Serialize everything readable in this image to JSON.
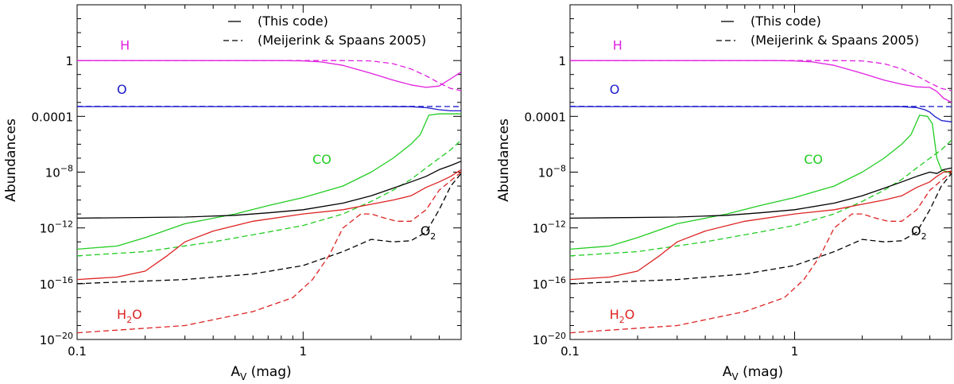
{
  "chart_data": [
    {
      "type": "line",
      "xscale": "log",
      "yscale": "log",
      "xlim": [
        0.1,
        5.0
      ],
      "ylim": [
        1e-20,
        10000
      ],
      "xlabel": "A",
      "xlabel_sub": "V",
      "xlabel_unit": " (mag)",
      "ylabel": "Abundances",
      "xticks": [
        {
          "v": 0.1,
          "label": "0.1"
        },
        {
          "v": 1,
          "label": "1"
        }
      ],
      "yticks": [
        {
          "v": 1e-20,
          "base": "10",
          "exp": "−20"
        },
        {
          "v": 1e-16,
          "base": "10",
          "exp": "−16"
        },
        {
          "v": 1e-12,
          "base": "10",
          "exp": "−12"
        },
        {
          "v": 1e-08,
          "base": "10",
          "exp": "−8"
        },
        {
          "v": 0.0001,
          "base": "0.0001",
          "exp": ""
        },
        {
          "v": 1,
          "base": "1",
          "exp": ""
        }
      ],
      "legend": [
        {
          "style": "solid",
          "label": "(This code)"
        },
        {
          "style": "dashed",
          "label": "(Meijerink & Spaans 2005)"
        }
      ],
      "annotations": [
        {
          "text": "H",
          "sub": "",
          "after": "",
          "color": "#e020e0",
          "x": 0.155,
          "y": 6
        },
        {
          "text": "O",
          "sub": "",
          "after": "",
          "color": "#1a1acc",
          "x": 0.15,
          "y": 0.004
        },
        {
          "text": "CO",
          "sub": "",
          "after": "",
          "color": "#22cc22",
          "x": 1.1,
          "y": 4e-08
        },
        {
          "text": "O",
          "sub": "2",
          "after": "",
          "color": "#000000",
          "x": 3.3,
          "y": 3e-13
        },
        {
          "text": "H",
          "sub": "2",
          "after": "O",
          "color": "#dd2222",
          "x": 0.15,
          "y": 3e-19
        }
      ],
      "series": [
        {
          "name": "H (This code)",
          "color": "#e020e0",
          "dash": false,
          "x": [
            0.1,
            0.3,
            0.6,
            0.8,
            1.0,
            1.2,
            1.5,
            2.0,
            2.5,
            3.0,
            3.5,
            4.0,
            4.5,
            5.0
          ],
          "y": [
            1,
            1,
            1,
            0.99,
            0.95,
            0.8,
            0.45,
            0.12,
            0.04,
            0.018,
            0.012,
            0.015,
            0.05,
            0.15
          ]
        },
        {
          "name": "H (Meijerink & Spaans 2005)",
          "color": "#e020e0",
          "dash": true,
          "x": [
            0.1,
            1.0,
            1.5,
            2.0,
            2.5,
            3.0,
            3.5,
            4.0,
            4.5,
            5.0
          ],
          "y": [
            1,
            1,
            0.99,
            0.95,
            0.6,
            0.25,
            0.08,
            0.025,
            0.01,
            0.007
          ]
        },
        {
          "name": "O (This code)",
          "color": "#1a1acc",
          "dash": false,
          "x": [
            0.1,
            1.0,
            2.0,
            3.0,
            3.5,
            4.0,
            4.5,
            5.0
          ],
          "y": [
            0.0005,
            0.0005,
            0.0005,
            0.00049,
            0.00042,
            0.0003,
            0.00025,
            0.00025
          ]
        },
        {
          "name": "O (Meijerink & Spaans 2005)",
          "color": "#1a1acc",
          "dash": true,
          "x": [
            0.1,
            1.0,
            3.0,
            5.0
          ],
          "y": [
            0.00052,
            0.00052,
            0.00052,
            0.0005
          ]
        },
        {
          "name": "CO (This code)",
          "color": "#22cc22",
          "dash": false,
          "x": [
            0.1,
            0.15,
            0.2,
            0.3,
            0.5,
            0.7,
            1.0,
            1.5,
            2.0,
            2.5,
            3.0,
            3.3,
            3.6,
            4.0,
            5.0
          ],
          "y": [
            3e-14,
            5e-14,
            2e-13,
            2e-12,
            1e-11,
            4e-11,
            1.5e-10,
            1e-09,
            1e-08,
            1e-07,
            1e-06,
            5e-06,
            0.00012,
            0.00015,
            0.00015
          ]
        },
        {
          "name": "CO (Meijerink & Spaans 2005)",
          "color": "#22cc22",
          "dash": true,
          "x": [
            0.1,
            0.2,
            0.4,
            0.7,
            1.0,
            1.5,
            2.0,
            2.5,
            3.0,
            3.5,
            4.0,
            4.5,
            5.0
          ],
          "y": [
            1e-14,
            2e-14,
            1e-13,
            5e-13,
            1.5e-12,
            1e-11,
            8e-11,
            5e-10,
            3e-09,
            2e-08,
            1e-07,
            4e-07,
            2e-06
          ]
        },
        {
          "name": "O2 (This code)",
          "color": "#000000",
          "dash": false,
          "x": [
            0.1,
            0.3,
            0.5,
            0.7,
            1.0,
            1.5,
            2.0,
            2.5,
            3.0,
            3.5,
            4.0,
            4.5,
            5.0
          ],
          "y": [
            5e-12,
            6e-12,
            8e-12,
            1.2e-11,
            2e-11,
            6e-11,
            2e-10,
            7e-10,
            2e-09,
            5e-09,
            1.5e-08,
            3e-08,
            6e-08
          ]
        },
        {
          "name": "O2 (Meijerink & Spaans 2005)",
          "color": "#000000",
          "dash": true,
          "x": [
            0.1,
            0.3,
            0.6,
            1.0,
            1.5,
            2.0,
            2.5,
            3.0,
            3.5,
            4.0,
            4.5,
            5.0
          ],
          "y": [
            1e-16,
            2e-16,
            5e-16,
            2e-15,
            2e-14,
            1.5e-13,
            1e-13,
            1.2e-13,
            5e-13,
            2e-11,
            1e-09,
            8e-09
          ]
        },
        {
          "name": "H2O (This code)",
          "color": "#dd2222",
          "dash": false,
          "x": [
            0.1,
            0.15,
            0.2,
            0.25,
            0.3,
            0.4,
            0.6,
            1.0,
            1.5,
            2.0,
            2.5,
            3.0,
            3.5,
            4.0,
            4.5,
            5.0
          ],
          "y": [
            2e-16,
            3e-16,
            8e-16,
            1e-14,
            1e-13,
            6e-13,
            3e-12,
            1e-11,
            2e-11,
            5e-11,
            1e-10,
            2e-10,
            8e-10,
            2e-09,
            5e-09,
            1.5e-08
          ]
        },
        {
          "name": "H2O (Meijerink & Spaans 2005)",
          "color": "#dd2222",
          "dash": true,
          "x": [
            0.1,
            0.3,
            0.6,
            0.9,
            1.1,
            1.3,
            1.5,
            1.8,
            2.0,
            2.3,
            2.6,
            3.0,
            3.5,
            4.0,
            5.0
          ],
          "y": [
            3e-20,
            1e-19,
            1e-18,
            1e-17,
            2e-16,
            1e-14,
            1e-12,
            1e-11,
            1e-11,
            5e-12,
            3e-12,
            3e-12,
            2e-11,
            5e-10,
            1e-08
          ]
        }
      ]
    },
    {
      "type": "line",
      "xscale": "log",
      "yscale": "log",
      "xlim": [
        0.1,
        5.0
      ],
      "ylim": [
        1e-20,
        10000
      ],
      "xlabel": "A",
      "xlabel_sub": "V",
      "xlabel_unit": " (mag)",
      "ylabel": "Abundances",
      "xticks": [
        {
          "v": 0.1,
          "label": "0.1"
        },
        {
          "v": 1,
          "label": "1"
        }
      ],
      "yticks": [
        {
          "v": 1e-20,
          "base": "10",
          "exp": "−20"
        },
        {
          "v": 1e-16,
          "base": "10",
          "exp": "−16"
        },
        {
          "v": 1e-12,
          "base": "10",
          "exp": "−12"
        },
        {
          "v": 1e-08,
          "base": "10",
          "exp": "−8"
        },
        {
          "v": 0.0001,
          "base": "0.0001",
          "exp": ""
        },
        {
          "v": 1,
          "base": "1",
          "exp": ""
        }
      ],
      "legend": [
        {
          "style": "solid",
          "label": "(This code)"
        },
        {
          "style": "dashed",
          "label": "(Meijerink & Spaans 2005)"
        }
      ],
      "annotations": [
        {
          "text": "H",
          "sub": "",
          "after": "",
          "color": "#e020e0",
          "x": 0.155,
          "y": 6
        },
        {
          "text": "O",
          "sub": "",
          "after": "",
          "color": "#1a1acc",
          "x": 0.15,
          "y": 0.004
        },
        {
          "text": "CO",
          "sub": "",
          "after": "",
          "color": "#22cc22",
          "x": 1.1,
          "y": 4e-08
        },
        {
          "text": "O",
          "sub": "2",
          "after": "",
          "color": "#000000",
          "x": 3.3,
          "y": 3e-13
        },
        {
          "text": "H",
          "sub": "2",
          "after": "O",
          "color": "#dd2222",
          "x": 0.15,
          "y": 3e-19
        }
      ],
      "series": [
        {
          "name": "H (This code)",
          "color": "#e020e0",
          "dash": false,
          "x": [
            0.1,
            0.3,
            0.6,
            0.8,
            1.0,
            1.2,
            1.5,
            2.0,
            2.5,
            3.0,
            3.5,
            4.0,
            4.3,
            4.6,
            5.0
          ],
          "y": [
            1,
            1,
            1,
            0.99,
            0.95,
            0.8,
            0.45,
            0.12,
            0.04,
            0.02,
            0.013,
            0.012,
            0.006,
            0.002,
            0.001
          ]
        },
        {
          "name": "H (Meijerink & Spaans 2005)",
          "color": "#e020e0",
          "dash": true,
          "x": [
            0.1,
            1.0,
            1.5,
            2.0,
            2.5,
            3.0,
            3.5,
            4.0,
            4.5,
            5.0
          ],
          "y": [
            1,
            1,
            0.99,
            0.95,
            0.6,
            0.25,
            0.08,
            0.025,
            0.01,
            0.007
          ]
        },
        {
          "name": "O (This code)",
          "color": "#1a1acc",
          "dash": false,
          "x": [
            0.1,
            1.0,
            2.0,
            3.0,
            3.5,
            3.8,
            4.0,
            4.2,
            4.5,
            5.0
          ],
          "y": [
            0.0005,
            0.0005,
            0.0005,
            0.00049,
            0.00042,
            0.0003,
            0.0002,
            0.0001,
            5e-05,
            4e-05
          ]
        },
        {
          "name": "O (Meijerink & Spaans 2005)",
          "color": "#1a1acc",
          "dash": true,
          "x": [
            0.1,
            1.0,
            3.0,
            5.0
          ],
          "y": [
            0.00052,
            0.00052,
            0.00052,
            0.0005
          ]
        },
        {
          "name": "CO (This code)",
          "color": "#22cc22",
          "dash": false,
          "x": [
            0.1,
            0.15,
            0.2,
            0.3,
            0.5,
            0.7,
            1.0,
            1.5,
            2.0,
            2.5,
            3.0,
            3.3,
            3.6,
            3.9,
            4.1,
            4.3,
            4.5,
            5.0
          ],
          "y": [
            3e-14,
            5e-14,
            2e-13,
            2e-12,
            1e-11,
            4e-11,
            1.5e-10,
            1e-09,
            1e-08,
            1e-07,
            1e-06,
            5e-06,
            0.00012,
            0.0001,
            3e-05,
            1e-07,
            1.5e-08,
            8e-09
          ]
        },
        {
          "name": "CO (Meijerink & Spaans 2005)",
          "color": "#22cc22",
          "dash": true,
          "x": [
            0.1,
            0.2,
            0.4,
            0.7,
            1.0,
            1.5,
            2.0,
            2.5,
            3.0,
            3.5,
            4.0,
            4.5,
            5.0
          ],
          "y": [
            1e-14,
            2e-14,
            1e-13,
            5e-13,
            1.5e-12,
            1e-11,
            8e-11,
            5e-10,
            3e-09,
            2e-08,
            1e-07,
            4e-07,
            2e-06
          ]
        },
        {
          "name": "O2 (This code)",
          "color": "#000000",
          "dash": false,
          "x": [
            0.1,
            0.3,
            0.5,
            0.7,
            1.0,
            1.5,
            2.0,
            2.5,
            3.0,
            3.5,
            4.0,
            4.3,
            4.6,
            5.0
          ],
          "y": [
            5e-12,
            6e-12,
            8e-12,
            1.2e-11,
            2e-11,
            6e-11,
            2e-10,
            7e-10,
            2e-09,
            5e-09,
            1e-08,
            8e-09,
            1.5e-08,
            2e-08
          ]
        },
        {
          "name": "O2 (Meijerink & Spaans 2005)",
          "color": "#000000",
          "dash": true,
          "x": [
            0.1,
            0.3,
            0.6,
            1.0,
            1.5,
            2.0,
            2.5,
            3.0,
            3.5,
            4.0,
            4.5,
            5.0
          ],
          "y": [
            1e-16,
            2e-16,
            5e-16,
            2e-15,
            2e-14,
            1.5e-13,
            1e-13,
            1.2e-13,
            5e-13,
            2e-11,
            1e-09,
            8e-09
          ]
        },
        {
          "name": "H2O (This code)",
          "color": "#dd2222",
          "dash": false,
          "x": [
            0.1,
            0.15,
            0.2,
            0.25,
            0.3,
            0.4,
            0.6,
            1.0,
            1.5,
            2.0,
            2.5,
            3.0,
            3.5,
            4.0,
            4.3,
            4.6,
            5.0
          ],
          "y": [
            2e-16,
            3e-16,
            8e-16,
            1e-14,
            1e-13,
            6e-13,
            3e-12,
            1e-11,
            2e-11,
            5e-11,
            1e-10,
            2e-10,
            8e-10,
            2e-09,
            5e-09,
            1e-08,
            1.2e-08
          ]
        },
        {
          "name": "H2O (Meijerink & Spaans 2005)",
          "color": "#dd2222",
          "dash": true,
          "x": [
            0.1,
            0.3,
            0.6,
            0.9,
            1.1,
            1.3,
            1.5,
            1.8,
            2.0,
            2.3,
            2.6,
            3.0,
            3.5,
            4.0,
            5.0
          ],
          "y": [
            3e-20,
            1e-19,
            1e-18,
            1e-17,
            2e-16,
            1e-14,
            1e-12,
            1e-11,
            1e-11,
            5e-12,
            3e-12,
            3e-12,
            2e-11,
            5e-10,
            1e-08
          ]
        }
      ]
    }
  ]
}
